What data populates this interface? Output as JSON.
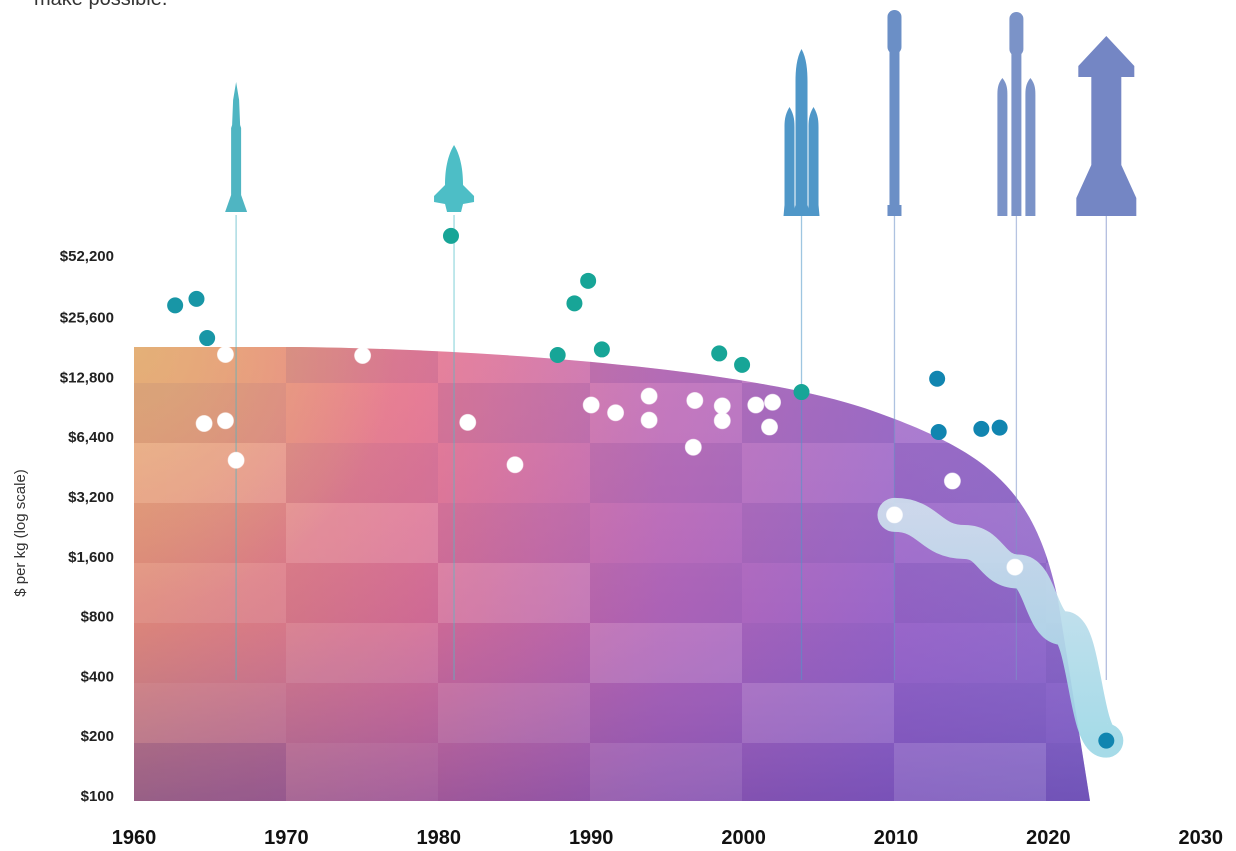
{
  "intro_text": "make possible.",
  "chart_data": {
    "type": "scatter",
    "title": "",
    "xlabel": "",
    "ylabel": "$ per kg (log scale)",
    "y_scale": "log2",
    "xlim": [
      1960,
      2030
    ],
    "ylim": [
      100,
      52200
    ],
    "x_ticks": [
      "1960",
      "1970",
      "1980",
      "1990",
      "2000",
      "2010",
      "2020",
      "2030"
    ],
    "y_ticks": [
      {
        "label": "$52,200",
        "value": 52200
      },
      {
        "label": "$25,600",
        "value": 25600
      },
      {
        "label": "$12,800",
        "value": 12800
      },
      {
        "label": "$6,400",
        "value": 6400
      },
      {
        "label": "$3,200",
        "value": 3200
      },
      {
        "label": "$1,600",
        "value": 1600
      },
      {
        "label": "$800",
        "value": 800
      },
      {
        "label": "$400",
        "value": 400
      },
      {
        "label": "$200",
        "value": 200
      },
      {
        "label": "$100",
        "value": 100
      }
    ],
    "colors": {
      "teal": "#17a597",
      "teal_dark": "#1896a6",
      "blue": "#1185b0",
      "white": "#ffffff"
    },
    "points": [
      {
        "x": 1962.7,
        "y": 29500,
        "color": "teal_dark"
      },
      {
        "x": 1964.1,
        "y": 31800,
        "color": "teal_dark"
      },
      {
        "x": 1964.8,
        "y": 20200,
        "color": "teal_dark"
      },
      {
        "x": 1966.0,
        "y": 16700,
        "color": "white"
      },
      {
        "x": 1964.6,
        "y": 7500,
        "color": "white"
      },
      {
        "x": 1966.0,
        "y": 7750,
        "color": "white"
      },
      {
        "x": 1966.7,
        "y": 4900,
        "color": "white"
      },
      {
        "x": 1975.0,
        "y": 16500,
        "color": "white"
      },
      {
        "x": 1980.8,
        "y": 66000,
        "color": "teal"
      },
      {
        "x": 1981.9,
        "y": 7600,
        "color": "white"
      },
      {
        "x": 1985.0,
        "y": 4650,
        "color": "white"
      },
      {
        "x": 1987.8,
        "y": 16600,
        "color": "teal"
      },
      {
        "x": 1988.9,
        "y": 30200,
        "color": "teal"
      },
      {
        "x": 1989.8,
        "y": 39200,
        "color": "teal"
      },
      {
        "x": 1990.7,
        "y": 17700,
        "color": "teal"
      },
      {
        "x": 1990.0,
        "y": 9300,
        "color": "white"
      },
      {
        "x": 1991.6,
        "y": 8500,
        "color": "white"
      },
      {
        "x": 1993.8,
        "y": 10300,
        "color": "white"
      },
      {
        "x": 1993.8,
        "y": 7800,
        "color": "white"
      },
      {
        "x": 1996.7,
        "y": 5700,
        "color": "white"
      },
      {
        "x": 1996.8,
        "y": 9800,
        "color": "white"
      },
      {
        "x": 1998.4,
        "y": 16900,
        "color": "teal"
      },
      {
        "x": 1998.6,
        "y": 9200,
        "color": "white"
      },
      {
        "x": 1998.6,
        "y": 7750,
        "color": "white"
      },
      {
        "x": 1999.9,
        "y": 14800,
        "color": "teal"
      },
      {
        "x": 2000.8,
        "y": 9300,
        "color": "white"
      },
      {
        "x": 2001.7,
        "y": 7200,
        "color": "white"
      },
      {
        "x": 2001.9,
        "y": 9600,
        "color": "white"
      },
      {
        "x": 2003.8,
        "y": 10800,
        "color": "teal"
      },
      {
        "x": 2009.9,
        "y": 2600,
        "color": "white"
      },
      {
        "x": 2012.7,
        "y": 12600,
        "color": "blue"
      },
      {
        "x": 2012.8,
        "y": 6800,
        "color": "blue"
      },
      {
        "x": 2013.7,
        "y": 3850,
        "color": "white"
      },
      {
        "x": 2015.6,
        "y": 7050,
        "color": "blue"
      },
      {
        "x": 2016.8,
        "y": 7150,
        "color": "blue"
      },
      {
        "x": 2017.8,
        "y": 1420,
        "color": "white"
      },
      {
        "x": 2023.8,
        "y": 190,
        "color": "blue"
      }
    ],
    "trend_path": [
      {
        "x": 2009.9,
        "y": 2600
      },
      {
        "x": 2014.5,
        "y": 1900
      },
      {
        "x": 2018.0,
        "y": 1350
      },
      {
        "x": 2021.0,
        "y": 700
      },
      {
        "x": 2023.8,
        "y": 190
      }
    ],
    "rockets": [
      {
        "type": "saturn-v",
        "x": 1966.7,
        "color": "#4fb5c2"
      },
      {
        "type": "space-shuttle",
        "x": 1981.0,
        "color": "#4dbec6"
      },
      {
        "type": "heavy-rocket",
        "x": 2003.8,
        "color": "#4f97c8"
      },
      {
        "type": "falcon-9",
        "x": 2009.9,
        "color": "#6b8fc6"
      },
      {
        "type": "falcon-heavy",
        "x": 2017.9,
        "color": "#7b93c8"
      },
      {
        "type": "starship",
        "x": 2023.8,
        "color": "#7486c4"
      }
    ]
  }
}
